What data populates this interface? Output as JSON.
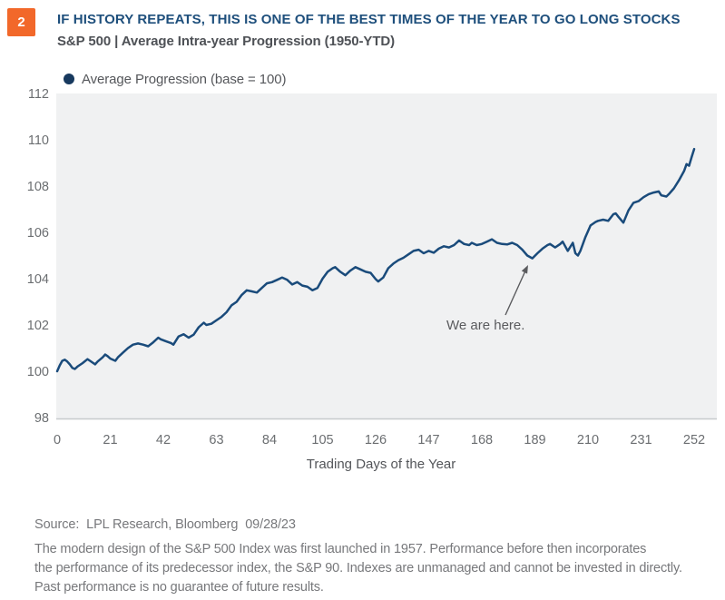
{
  "page": {
    "badge": "2",
    "title": "IF HISTORY REPEATS, THIS IS ONE OF THE BEST TIMES OF THE YEAR TO GO LONG STOCKS",
    "subtitle": "S&P 500 | Average Intra-year Progression (1950-YTD)"
  },
  "legend": {
    "label": "Average Progression (base = 100)"
  },
  "annotation": {
    "text": "We are here."
  },
  "footer": {
    "source": "Source:  LPL Research, Bloomberg  09/28/23",
    "disclaimer_line1": "The modern design of the S&P 500 Index was first launched in 1957. Performance before then incorporates",
    "disclaimer_line2": "the performance of its predecessor index, the S&P 90. Indexes are unmanaged and cannot be invested in directly.",
    "disclaimer_line3": "Past performance is no guarantee of future results."
  },
  "colors": {
    "accent_orange": "#F2682A",
    "title_navy": "#1E4F7C",
    "line_navy": "#1A4B7B",
    "legend_dot_navy": "#17395E",
    "plot_background": "#F0F1F2",
    "axis_line_gray": "#C7CACD",
    "tick_gray": "#6B6E71",
    "footer_gray": "#77787B"
  },
  "chart_data": {
    "type": "line",
    "title": "S&P 500 | Average Intra-year Progression (1950-YTD)",
    "xlabel": "Trading Days of the Year",
    "ylabel": "",
    "xlim": [
      0,
      252
    ],
    "ylim": [
      98,
      112
    ],
    "grid": false,
    "legend_position": "top-left",
    "x_ticks": [
      0,
      21,
      42,
      63,
      84,
      105,
      126,
      147,
      168,
      189,
      210,
      231,
      252
    ],
    "y_ticks": [
      112,
      110,
      108,
      106,
      104,
      102,
      100,
      98
    ],
    "annotation": {
      "text": "We are here.",
      "day": 188,
      "value": 104.88
    },
    "series": [
      {
        "name": "Average Progression (base = 100)",
        "points": [
          [
            0,
            100.0
          ],
          [
            1,
            100.25
          ],
          [
            2,
            100.45
          ],
          [
            3,
            100.5
          ],
          [
            4,
            100.42
          ],
          [
            5,
            100.3
          ],
          [
            6,
            100.15
          ],
          [
            7,
            100.1
          ],
          [
            8,
            100.2
          ],
          [
            10,
            100.35
          ],
          [
            12,
            100.52
          ],
          [
            13,
            100.45
          ],
          [
            15,
            100.3
          ],
          [
            16,
            100.42
          ],
          [
            18,
            100.6
          ],
          [
            19,
            100.72
          ],
          [
            20,
            100.65
          ],
          [
            21,
            100.55
          ],
          [
            23,
            100.45
          ],
          [
            24,
            100.6
          ],
          [
            26,
            100.8
          ],
          [
            28,
            101.0
          ],
          [
            30,
            101.15
          ],
          [
            32,
            101.2
          ],
          [
            34,
            101.15
          ],
          [
            36,
            101.08
          ],
          [
            38,
            101.25
          ],
          [
            40,
            101.45
          ],
          [
            41,
            101.38
          ],
          [
            43,
            101.3
          ],
          [
            45,
            101.22
          ],
          [
            46,
            101.15
          ],
          [
            48,
            101.5
          ],
          [
            50,
            101.6
          ],
          [
            52,
            101.45
          ],
          [
            54,
            101.58
          ],
          [
            56,
            101.9
          ],
          [
            58,
            102.1
          ],
          [
            59,
            102.0
          ],
          [
            61,
            102.05
          ],
          [
            63,
            102.2
          ],
          [
            65,
            102.35
          ],
          [
            67,
            102.55
          ],
          [
            69,
            102.85
          ],
          [
            71,
            103.0
          ],
          [
            73,
            103.3
          ],
          [
            75,
            103.5
          ],
          [
            77,
            103.45
          ],
          [
            79,
            103.4
          ],
          [
            81,
            103.6
          ],
          [
            83,
            103.8
          ],
          [
            85,
            103.85
          ],
          [
            87,
            103.95
          ],
          [
            89,
            104.05
          ],
          [
            91,
            103.95
          ],
          [
            93,
            103.75
          ],
          [
            95,
            103.85
          ],
          [
            97,
            103.7
          ],
          [
            99,
            103.65
          ],
          [
            101,
            103.5
          ],
          [
            103,
            103.6
          ],
          [
            105,
            104.0
          ],
          [
            107,
            104.3
          ],
          [
            109,
            104.45
          ],
          [
            110,
            104.5
          ],
          [
            112,
            104.3
          ],
          [
            114,
            104.15
          ],
          [
            116,
            104.35
          ],
          [
            118,
            104.5
          ],
          [
            120,
            104.4
          ],
          [
            122,
            104.3
          ],
          [
            124,
            104.25
          ],
          [
            126,
            103.98
          ],
          [
            127,
            103.88
          ],
          [
            129,
            104.05
          ],
          [
            131,
            104.45
          ],
          [
            133,
            104.65
          ],
          [
            135,
            104.8
          ],
          [
            137,
            104.9
          ],
          [
            139,
            105.05
          ],
          [
            141,
            105.2
          ],
          [
            143,
            105.25
          ],
          [
            145,
            105.1
          ],
          [
            147,
            105.2
          ],
          [
            149,
            105.12
          ],
          [
            151,
            105.3
          ],
          [
            153,
            105.4
          ],
          [
            155,
            105.35
          ],
          [
            157,
            105.45
          ],
          [
            159,
            105.65
          ],
          [
            161,
            105.5
          ],
          [
            163,
            105.45
          ],
          [
            164,
            105.55
          ],
          [
            166,
            105.45
          ],
          [
            168,
            105.5
          ],
          [
            170,
            105.6
          ],
          [
            172,
            105.7
          ],
          [
            174,
            105.55
          ],
          [
            176,
            105.5
          ],
          [
            178,
            105.48
          ],
          [
            180,
            105.55
          ],
          [
            182,
            105.45
          ],
          [
            184,
            105.25
          ],
          [
            186,
            105.0
          ],
          [
            188,
            104.88
          ],
          [
            190,
            105.1
          ],
          [
            192,
            105.3
          ],
          [
            194,
            105.45
          ],
          [
            195,
            105.5
          ],
          [
            197,
            105.35
          ],
          [
            199,
            105.5
          ],
          [
            200,
            105.6
          ],
          [
            201,
            105.4
          ],
          [
            202,
            105.2
          ],
          [
            204,
            105.55
          ],
          [
            205,
            105.1
          ],
          [
            206,
            105.0
          ],
          [
            207,
            105.2
          ],
          [
            209,
            105.8
          ],
          [
            211,
            106.3
          ],
          [
            213,
            106.45
          ],
          [
            214,
            106.5
          ],
          [
            216,
            106.55
          ],
          [
            218,
            106.5
          ],
          [
            220,
            106.78
          ],
          [
            221,
            106.82
          ],
          [
            222,
            106.68
          ],
          [
            224,
            106.42
          ],
          [
            226,
            106.95
          ],
          [
            228,
            107.28
          ],
          [
            230,
            107.35
          ],
          [
            232,
            107.52
          ],
          [
            234,
            107.65
          ],
          [
            236,
            107.72
          ],
          [
            238,
            107.77
          ],
          [
            239,
            107.6
          ],
          [
            241,
            107.55
          ],
          [
            242,
            107.65
          ],
          [
            244,
            107.9
          ],
          [
            246,
            108.25
          ],
          [
            248,
            108.65
          ],
          [
            249,
            108.95
          ],
          [
            250,
            108.88
          ],
          [
            251,
            109.25
          ],
          [
            252,
            109.6
          ]
        ]
      }
    ]
  }
}
